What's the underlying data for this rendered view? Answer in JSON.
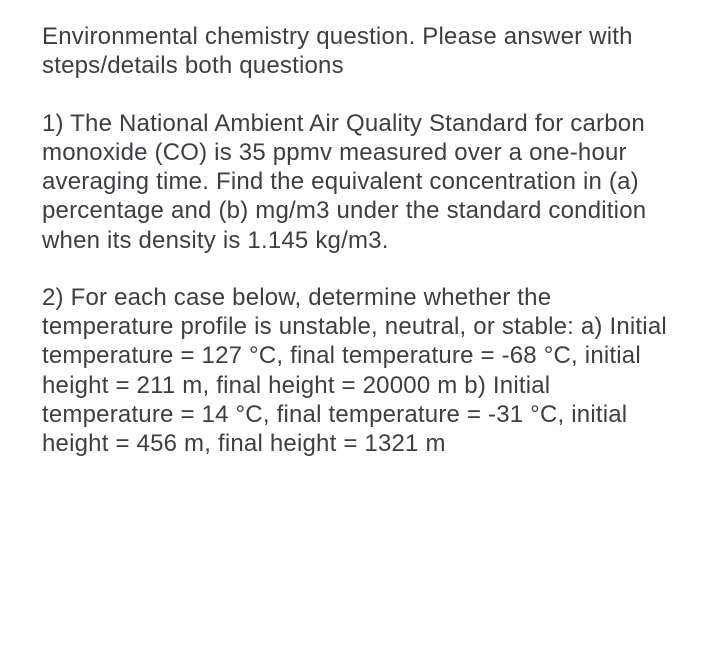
{
  "intro": "Environmental chemistry question. Please answer with steps/details both questions",
  "q1": "1) The National Ambient Air Quality Standard for carbon monoxide (CO) is 35 ppmv measured over a one-hour averaging time. Find the equivalent concentration in (a) percentage and (b) mg/m3\nunder the standard condition when its density is 1.145 kg/m3.",
  "q2": "2) For each case below, determine whether the temperature profile is unstable, neutral, or stable:\na) Initial temperature = 127 °C, final temperature = -68 °C, initial height = 211 m, final height = 20000 m\nb) Initial temperature = 14 °C, final temperature = -31 °C, initial height = 456 m, final height = 1321 m"
}
